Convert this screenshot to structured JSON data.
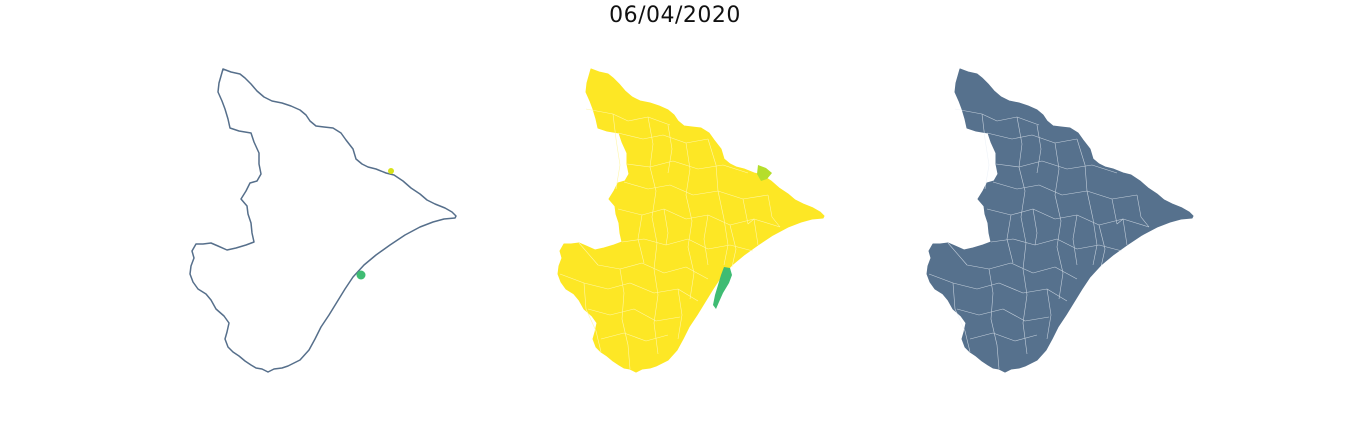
{
  "figure": {
    "title": "06/04/2020"
  },
  "colors": {
    "outline": "#566f8b",
    "fill_yellow": "#fde725",
    "fill_green": "#3fbc73",
    "fill_yellowgreen": "#b5de2b",
    "fill_slate": "#56718d",
    "internal_border": "#e8eef5"
  },
  "panels": [
    {
      "style": "outline-with-points"
    },
    {
      "style": "choropleth-viridis"
    },
    {
      "style": "municipal-boundaries"
    }
  ]
}
